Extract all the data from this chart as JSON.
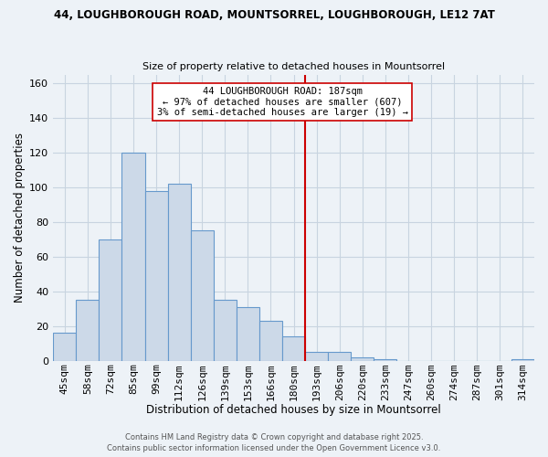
{
  "title_line1": "44, LOUGHBOROUGH ROAD, MOUNTSORREL, LOUGHBOROUGH, LE12 7AT",
  "title_line2": "Size of property relative to detached houses in Mountsorrel",
  "xlabel": "Distribution of detached houses by size in Mountsorrel",
  "ylabel": "Number of detached properties",
  "bar_labels": [
    "45sqm",
    "58sqm",
    "72sqm",
    "85sqm",
    "99sqm",
    "112sqm",
    "126sqm",
    "139sqm",
    "153sqm",
    "166sqm",
    "180sqm",
    "193sqm",
    "206sqm",
    "220sqm",
    "233sqm",
    "247sqm",
    "260sqm",
    "274sqm",
    "287sqm",
    "301sqm",
    "314sqm"
  ],
  "bar_heights": [
    16,
    35,
    70,
    120,
    98,
    102,
    75,
    35,
    31,
    23,
    14,
    5,
    5,
    2,
    1,
    0,
    0,
    0,
    0,
    0,
    1
  ],
  "bar_color": "#ccd9e8",
  "bar_edge_color": "#6699cc",
  "vline_x_index": 10.5,
  "vline_color": "#cc0000",
  "annotation_text": "44 LOUGHBOROUGH ROAD: 187sqm\n← 97% of detached houses are smaller (607)\n3% of semi-detached houses are larger (19) →",
  "annotation_box_facecolor": "#ffffff",
  "annotation_box_edgecolor": "#cc0000",
  "ylim": [
    0,
    165
  ],
  "yticks": [
    0,
    20,
    40,
    60,
    80,
    100,
    120,
    140,
    160
  ],
  "footer_line1": "Contains HM Land Registry data © Crown copyright and database right 2025.",
  "footer_line2": "Contains public sector information licensed under the Open Government Licence v3.0.",
  "grid_color": "#c8d4e0",
  "background_color": "#edf2f7",
  "title1_fontsize": 8.5,
  "title2_fontsize": 8.0,
  "axis_label_fontsize": 8.5,
  "tick_fontsize": 8.0,
  "annotation_fontsize": 7.5,
  "footer_fontsize": 6.0
}
